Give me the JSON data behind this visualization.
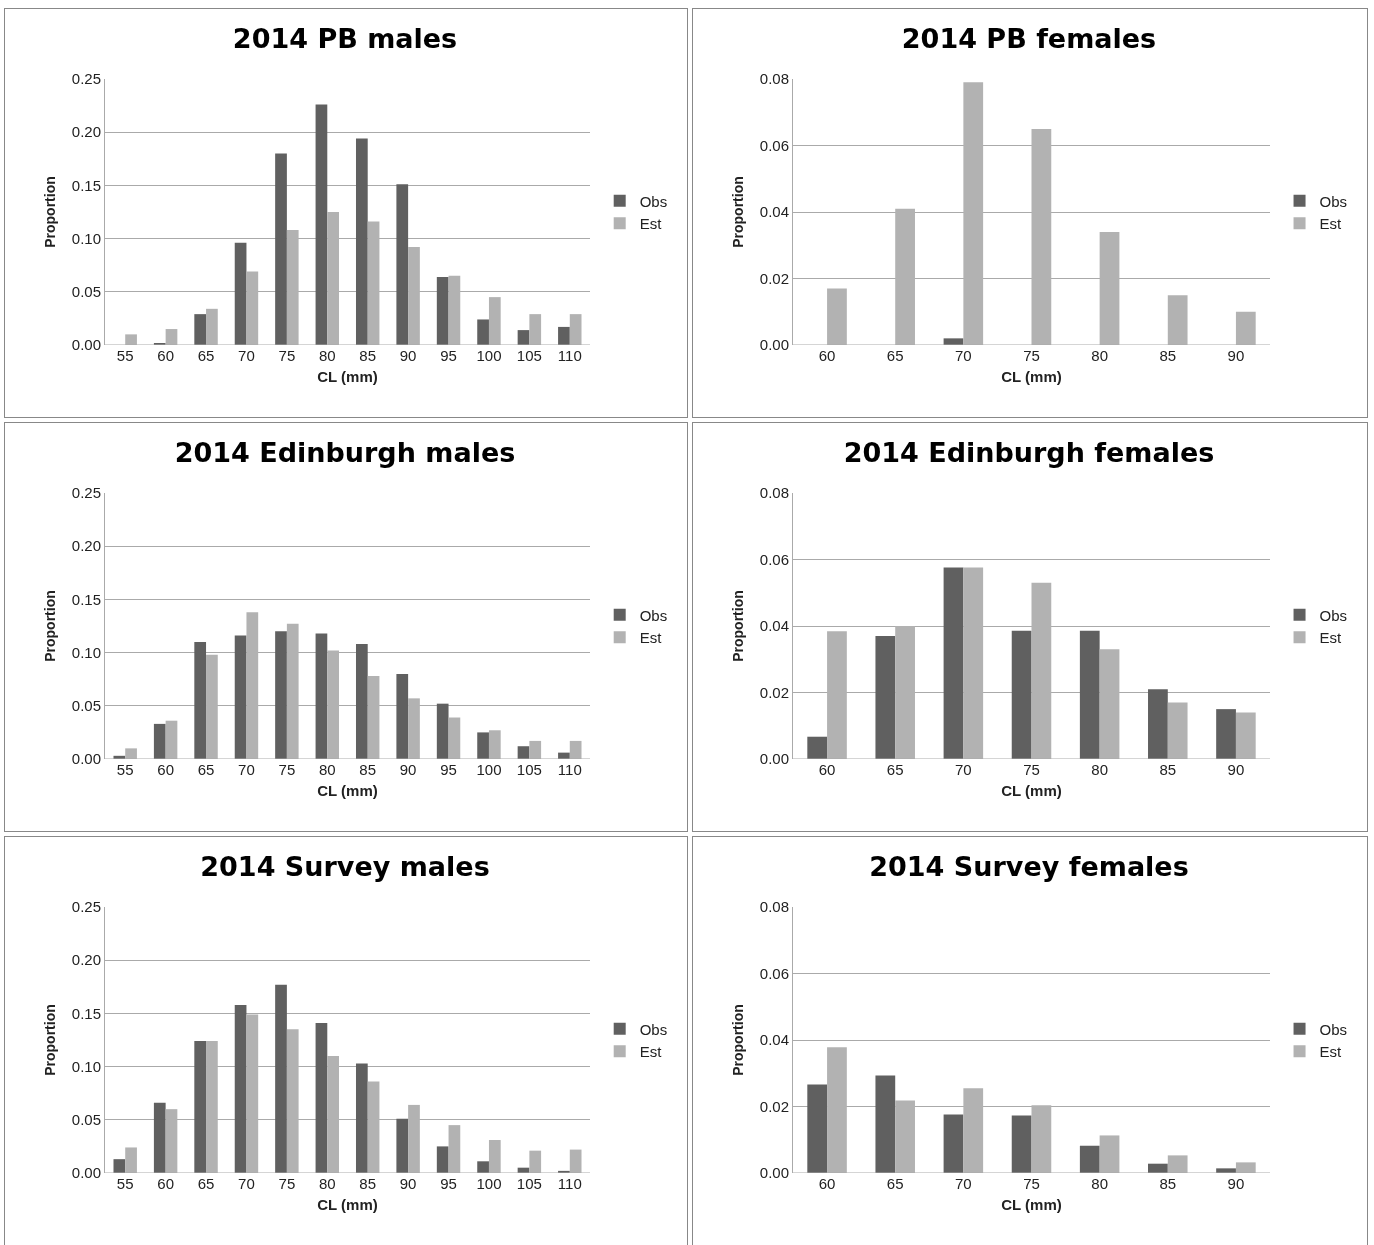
{
  "chart_data": [
    {
      "type": "bar",
      "title": "2014 PB males",
      "xlabel": "CL (mm)",
      "ylabel": "Proportion",
      "categories": [
        "55",
        "60",
        "65",
        "70",
        "75",
        "80",
        "85",
        "90",
        "95",
        "100",
        "105",
        "110"
      ],
      "series": [
        {
          "name": "Obs",
          "color": "#606060",
          "values": [
            0,
            0.001,
            0.029,
            0.096,
            0.18,
            0.226,
            0.194,
            0.151,
            0.064,
            0.024,
            0.014,
            0.017
          ]
        },
        {
          "name": "Est",
          "color": "#b2b2b2",
          "values": [
            0.01,
            0.015,
            0.034,
            0.069,
            0.108,
            0.125,
            0.116,
            0.092,
            0.065,
            0.045,
            0.029,
            0.029
          ]
        }
      ],
      "ylim": [
        0,
        0.25
      ],
      "yticks": [
        {
          "value": 0,
          "label": "0.00"
        },
        {
          "value": 0.05,
          "label": "0.05"
        },
        {
          "value": 0.1,
          "label": "0.10"
        },
        {
          "value": 0.15,
          "label": "0.15"
        },
        {
          "value": 0.2,
          "label": "0.20"
        },
        {
          "value": 0.25,
          "label": "0.25"
        }
      ],
      "grid": "y",
      "legend": "right"
    },
    {
      "type": "bar",
      "title": "2014 PB females",
      "xlabel": "CL (mm)",
      "ylabel": "Proportion",
      "categories": [
        "60",
        "65",
        "70",
        "75",
        "80",
        "85",
        "90"
      ],
      "series": [
        {
          "name": "Obs",
          "color": "#606060",
          "values": [
            0,
            0,
            0.002,
            0,
            0,
            0,
            0
          ]
        },
        {
          "name": "Est",
          "color": "#b2b2b2",
          "values": [
            0.017,
            0.041,
            0.079,
            0.065,
            0.034,
            0.015,
            0.01
          ]
        }
      ],
      "ylim": [
        0,
        0.08
      ],
      "yticks": [
        {
          "value": 0,
          "label": "0.00"
        },
        {
          "value": 0.02,
          "label": "0.02"
        },
        {
          "value": 0.04,
          "label": "0.04"
        },
        {
          "value": 0.06,
          "label": "0.06"
        },
        {
          "value": 0.08,
          "label": "0.08"
        }
      ],
      "grid": "y",
      "legend": "right"
    },
    {
      "type": "bar",
      "title": "2014 Edinburgh males",
      "xlabel": "CL (mm)",
      "ylabel": "Proportion",
      "categories": [
        "55",
        "60",
        "65",
        "70",
        "75",
        "80",
        "85",
        "90",
        "95",
        "100",
        "105",
        "110"
      ],
      "series": [
        {
          "name": "Obs",
          "color": "#606060",
          "values": [
            0.003,
            0.033,
            0.11,
            0.116,
            0.12,
            0.118,
            0.108,
            0.08,
            0.052,
            0.025,
            0.012,
            0.006
          ]
        },
        {
          "name": "Est",
          "color": "#b2b2b2",
          "values": [
            0.01,
            0.036,
            0.098,
            0.138,
            0.127,
            0.102,
            0.078,
            0.057,
            0.039,
            0.027,
            0.017,
            0.017
          ]
        }
      ],
      "ylim": [
        0,
        0.25
      ],
      "yticks": [
        {
          "value": 0,
          "label": "0.00"
        },
        {
          "value": 0.05,
          "label": "0.05"
        },
        {
          "value": 0.1,
          "label": "0.10"
        },
        {
          "value": 0.15,
          "label": "0.15"
        },
        {
          "value": 0.2,
          "label": "0.20"
        },
        {
          "value": 0.25,
          "label": "0.25"
        }
      ],
      "grid": "y",
      "legend": "right"
    },
    {
      "type": "bar",
      "title": "2014 Edinburgh females",
      "xlabel": "CL (mm)",
      "ylabel": "Proportion",
      "categories": [
        "60",
        "65",
        "70",
        "75",
        "80",
        "85",
        "90"
      ],
      "series": [
        {
          "name": "Obs",
          "color": "#606060",
          "values": [
            0.0067,
            0.037,
            0.0576,
            0.0386,
            0.0386,
            0.021,
            0.015
          ]
        },
        {
          "name": "Est",
          "color": "#b2b2b2",
          "values": [
            0.0384,
            0.04,
            0.0576,
            0.053,
            0.033,
            0.017,
            0.014
          ]
        }
      ],
      "ylim": [
        0,
        0.08
      ],
      "yticks": [
        {
          "value": 0,
          "label": "0.00"
        },
        {
          "value": 0.02,
          "label": "0.02"
        },
        {
          "value": 0.04,
          "label": "0.04"
        },
        {
          "value": 0.06,
          "label": "0.06"
        },
        {
          "value": 0.08,
          "label": "0.08"
        }
      ],
      "grid": "y",
      "legend": "right"
    },
    {
      "type": "bar",
      "title": "2014 Survey males",
      "xlabel": "CL (mm)",
      "ylabel": "Proportion",
      "categories": [
        "55",
        "60",
        "65",
        "70",
        "75",
        "80",
        "85",
        "90",
        "95",
        "100",
        "105",
        "110"
      ],
      "series": [
        {
          "name": "Obs",
          "color": "#606060",
          "values": [
            0.013,
            0.066,
            0.124,
            0.158,
            0.177,
            0.141,
            0.103,
            0.051,
            0.025,
            0.011,
            0.005,
            0.002
          ]
        },
        {
          "name": "Est",
          "color": "#b2b2b2",
          "values": [
            0.024,
            0.06,
            0.124,
            0.149,
            0.135,
            0.11,
            0.086,
            0.064,
            0.045,
            0.031,
            0.021,
            0.022
          ]
        }
      ],
      "ylim": [
        0,
        0.25
      ],
      "yticks": [
        {
          "value": 0,
          "label": "0.00"
        },
        {
          "value": 0.05,
          "label": "0.05"
        },
        {
          "value": 0.1,
          "label": "0.10"
        },
        {
          "value": 0.15,
          "label": "0.15"
        },
        {
          "value": 0.2,
          "label": "0.20"
        },
        {
          "value": 0.25,
          "label": "0.25"
        }
      ],
      "grid": "y",
      "legend": "right"
    },
    {
      "type": "bar",
      "title": "2014 Survey females",
      "xlabel": "CL (mm)",
      "ylabel": "Proportion",
      "categories": [
        "60",
        "65",
        "70",
        "75",
        "80",
        "85",
        "90"
      ],
      "series": [
        {
          "name": "Obs",
          "color": "#606060",
          "values": [
            0.0266,
            0.0293,
            0.0176,
            0.0173,
            0.0082,
            0.0028,
            0.0014
          ]
        },
        {
          "name": "Est",
          "color": "#b2b2b2",
          "values": [
            0.0378,
            0.0218,
            0.0255,
            0.0204,
            0.0113,
            0.0053,
            0.0032
          ]
        }
      ],
      "ylim": [
        0,
        0.08
      ],
      "yticks": [
        {
          "value": 0,
          "label": "0.00"
        },
        {
          "value": 0.02,
          "label": "0.02"
        },
        {
          "value": 0.04,
          "label": "0.04"
        },
        {
          "value": 0.06,
          "label": "0.06"
        },
        {
          "value": 0.08,
          "label": "0.08"
        }
      ],
      "grid": "y",
      "legend": "right"
    }
  ]
}
